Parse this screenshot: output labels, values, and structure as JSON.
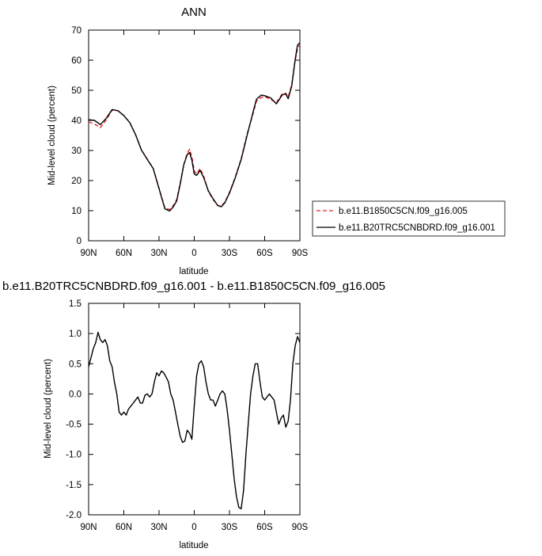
{
  "chart_data": [
    {
      "type": "line",
      "title": "ANN",
      "xlabel": "latitude",
      "ylabel": "Mid-level cloud (percent)",
      "x_ticks": [
        {
          "value": 90,
          "label": "90N"
        },
        {
          "value": 60,
          "label": "60N"
        },
        {
          "value": 30,
          "label": "30N"
        },
        {
          "value": 0,
          "label": "0"
        },
        {
          "value": -30,
          "label": "30S"
        },
        {
          "value": -60,
          "label": "60S"
        },
        {
          "value": -90,
          "label": "90S"
        }
      ],
      "xlim": [
        90,
        -90
      ],
      "ylim": [
        0,
        70
      ],
      "y_ticks": [
        0,
        10,
        20,
        30,
        40,
        50,
        60,
        70
      ],
      "legend_position": "right",
      "series": [
        {
          "name": "b.e11.B1850C5CN.f09_g16.005",
          "color": "#e8202a",
          "dash": "dashed",
          "x": [
            90,
            85,
            80,
            75,
            70,
            65,
            60,
            55,
            50,
            45,
            40,
            35,
            30,
            25,
            21,
            18,
            15,
            12,
            9,
            6,
            4,
            2,
            0,
            -2,
            -5,
            -8,
            -12,
            -16,
            -20,
            -23,
            -26,
            -30,
            -35,
            -40,
            -45,
            -50,
            -53,
            -57,
            -60,
            -65,
            -70,
            -75,
            -78,
            -80,
            -83,
            -86,
            -88,
            -90
          ],
          "y": [
            39.5,
            38.8,
            37.6,
            40.2,
            43.4,
            43.2,
            41.6,
            39.4,
            35.3,
            30.2,
            27.1,
            24.1,
            17.5,
            10.9,
            10.4,
            11.6,
            13.7,
            19.1,
            25.2,
            29.1,
            30.4,
            27.9,
            23.2,
            22.2,
            24.0,
            21.5,
            16.4,
            13.7,
            11.7,
            11.6,
            12.8,
            16.1,
            21.2,
            27.3,
            35.5,
            42.1,
            46.4,
            47.6,
            47.9,
            47.0,
            45.9,
            48.9,
            49.0,
            47.8,
            51.7,
            60.0,
            63.8,
            65.3
          ]
        },
        {
          "name": "b.e11.B20TRC5CNBDRD.f09_g16.001",
          "color": "#000000",
          "dash": "solid",
          "x": [
            90,
            85,
            80,
            75,
            70,
            65,
            60,
            55,
            50,
            45,
            40,
            35,
            30,
            25,
            21,
            18,
            15,
            12,
            9,
            6,
            4,
            2,
            0,
            -2,
            -5,
            -8,
            -12,
            -16,
            -20,
            -23,
            -26,
            -30,
            -35,
            -40,
            -45,
            -50,
            -53,
            -57,
            -60,
            -65,
            -70,
            -75,
            -78,
            -80,
            -83,
            -86,
            -88,
            -90
          ],
          "y": [
            40.2,
            40.0,
            38.6,
            40.7,
            43.6,
            43.2,
            41.6,
            39.3,
            35.3,
            30.1,
            27.0,
            24.0,
            17.3,
            10.6,
            9.9,
            11.2,
            13.2,
            18.7,
            25.2,
            28.6,
            29.3,
            26.8,
            22.2,
            21.7,
            23.4,
            21.0,
            16.6,
            14.0,
            11.7,
            11.3,
            12.6,
            15.8,
            21.0,
            27.0,
            35.0,
            42.6,
            47.0,
            48.4,
            48.2,
            47.5,
            45.5,
            48.5,
            48.8,
            47.2,
            51.3,
            60.3,
            65.0,
            65.8
          ]
        }
      ]
    },
    {
      "type": "line",
      "title": "b.e11.B20TRC5CNBDRD.f09_g16.001 - b.e11.B1850C5CN.f09_g16.005",
      "xlabel": "latitude",
      "ylabel": "Mid-level cloud (percent)",
      "x_ticks": [
        {
          "value": 90,
          "label": "90N"
        },
        {
          "value": 60,
          "label": "60N"
        },
        {
          "value": 30,
          "label": "30N"
        },
        {
          "value": 0,
          "label": "0"
        },
        {
          "value": -30,
          "label": "30S"
        },
        {
          "value": -60,
          "label": "60S"
        },
        {
          "value": -90,
          "label": "90S"
        }
      ],
      "xlim": [
        90,
        -90
      ],
      "ylim": [
        -2.0,
        1.5
      ],
      "y_ticks": [
        {
          "value": -2.0,
          "label": "-2.0"
        },
        {
          "value": -1.5,
          "label": "-1.5"
        },
        {
          "value": -1.0,
          "label": "-1.0"
        },
        {
          "value": -0.5,
          "label": "-0.5"
        },
        {
          "value": 0.0,
          "label": "0.0"
        },
        {
          "value": 0.5,
          "label": "0.5"
        },
        {
          "value": 1.0,
          "label": "1.0"
        },
        {
          "value": 1.5,
          "label": "1.5"
        }
      ],
      "series": [
        {
          "color": "#000000",
          "dash": "solid",
          "x": [
            90,
            88,
            86,
            84,
            82,
            80,
            78,
            76,
            74,
            72,
            70,
            68,
            66,
            64,
            62,
            60,
            58,
            56,
            54,
            52,
            50,
            48,
            46,
            44,
            42,
            40,
            38,
            36,
            34,
            32,
            30,
            28,
            26,
            24,
            22,
            20,
            18,
            16,
            14,
            12,
            10,
            8,
            6,
            4,
            2,
            0,
            -2,
            -4,
            -6,
            -8,
            -10,
            -12,
            -14,
            -16,
            -18,
            -20,
            -22,
            -24,
            -26,
            -28,
            -30,
            -32,
            -34,
            -36,
            -38,
            -40,
            -42,
            -44,
            -46,
            -48,
            -50,
            -52,
            -54,
            -56,
            -58,
            -60,
            -62,
            -64,
            -66,
            -68,
            -70,
            -72,
            -74,
            -76,
            -78,
            -80,
            -82,
            -84,
            -86,
            -88,
            -90
          ],
          "y": [
            0.45,
            0.6,
            0.75,
            0.85,
            1.02,
            0.9,
            0.85,
            0.9,
            0.8,
            0.55,
            0.45,
            0.2,
            0.0,
            -0.3,
            -0.35,
            -0.3,
            -0.35,
            -0.25,
            -0.2,
            -0.15,
            -0.1,
            -0.05,
            -0.15,
            -0.15,
            -0.02,
            0.0,
            -0.05,
            0.0,
            0.2,
            0.35,
            0.3,
            0.38,
            0.35,
            0.28,
            0.2,
            0.0,
            -0.1,
            -0.3,
            -0.5,
            -0.7,
            -0.8,
            -0.78,
            -0.6,
            -0.65,
            -0.75,
            -0.2,
            0.3,
            0.5,
            0.55,
            0.45,
            0.2,
            0.0,
            -0.1,
            -0.1,
            -0.2,
            -0.1,
            0.0,
            0.05,
            0.0,
            -0.25,
            -0.6,
            -1.0,
            -1.4,
            -1.7,
            -1.88,
            -1.9,
            -1.6,
            -1.0,
            -0.5,
            0.0,
            0.3,
            0.5,
            0.5,
            0.2,
            -0.05,
            -0.1,
            -0.05,
            0.0,
            -0.05,
            -0.1,
            -0.3,
            -0.5,
            -0.4,
            -0.35,
            -0.55,
            -0.45,
            -0.1,
            0.5,
            0.8,
            0.95,
            0.85
          ]
        }
      ]
    }
  ]
}
